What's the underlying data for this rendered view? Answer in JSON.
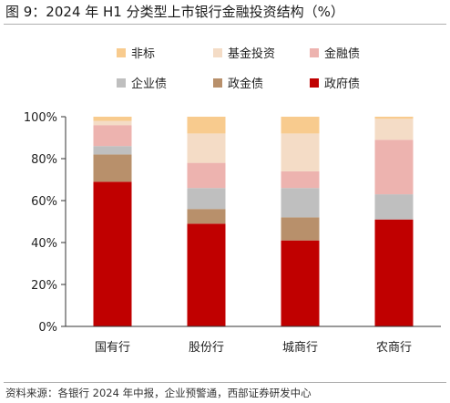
{
  "title": "图 9：2024 年 H1 分类型上市银行金融投资结构（%）",
  "source": "资料来源：各银行 2024 年中报，企业预警通，西部证券研发中心",
  "chart_data": {
    "type": "bar",
    "stacked": true,
    "percent": true,
    "categories": [
      "国有行",
      "股份行",
      "城商行",
      "农商行"
    ],
    "ylim": [
      0,
      100
    ],
    "yticks": [
      "0%",
      "20%",
      "40%",
      "60%",
      "80%",
      "100%"
    ],
    "legend_position": "top",
    "grid": false,
    "series": [
      {
        "name": "政府债",
        "color": "#C00000",
        "values": [
          69,
          49,
          41,
          51
        ]
      },
      {
        "name": "政金债",
        "color": "#B8906B",
        "values": [
          13,
          7,
          11,
          0
        ]
      },
      {
        "name": "企业债",
        "color": "#BFBFBF",
        "values": [
          4,
          10,
          14,
          12
        ]
      },
      {
        "name": "金融债",
        "color": "#EDB3AF",
        "values": [
          10,
          12,
          8,
          26
        ]
      },
      {
        "name": "基金投资",
        "color": "#F4DCC6",
        "values": [
          2,
          14,
          18,
          10
        ]
      },
      {
        "name": "非标",
        "color": "#F8CB8E",
        "values": [
          2,
          8,
          8,
          1
        ]
      }
    ]
  }
}
